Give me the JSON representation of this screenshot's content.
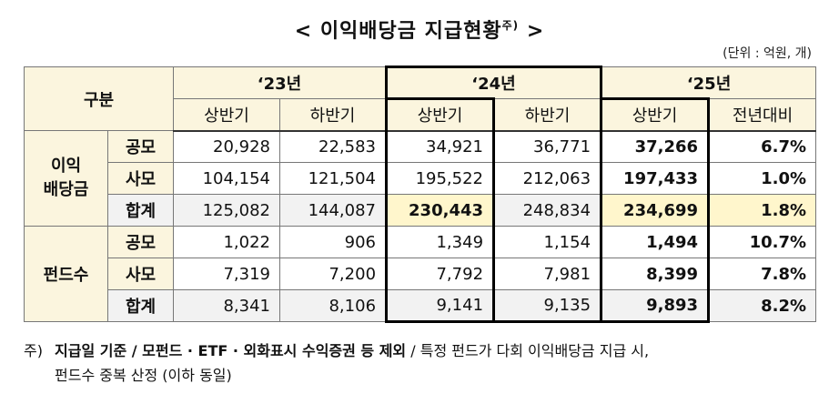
{
  "title": {
    "left_bracket": "<",
    "text": "이익배당금 지급현황",
    "sup": "주)",
    "right_bracket": ">"
  },
  "unit": "(단위 : 억원, 개)",
  "header": {
    "category": "구분",
    "years": [
      "‘23년",
      "‘24년",
      "‘25년"
    ],
    "sub": [
      "상반기",
      "하반기",
      "상반기",
      "하반기",
      "상반기",
      "전년대비"
    ]
  },
  "groups": [
    {
      "name": "이익\n배당금",
      "rows": [
        {
          "label": "공모",
          "values": [
            "20,928",
            "22,583",
            "34,921",
            "36,771",
            "37,266",
            "6.7%"
          ]
        },
        {
          "label": "사모",
          "values": [
            "104,154",
            "121,504",
            "195,522",
            "212,063",
            "197,433",
            "1.0%"
          ]
        },
        {
          "label": "합계",
          "values": [
            "125,082",
            "144,087",
            "230,443",
            "248,834",
            "234,699",
            "1.8%"
          ]
        }
      ]
    },
    {
      "name": "펀드수",
      "rows": [
        {
          "label": "공모",
          "values": [
            "1,022",
            "906",
            "1,349",
            "1,154",
            "1,494",
            "10.7%"
          ]
        },
        {
          "label": "사모",
          "values": [
            "7,319",
            "7,200",
            "7,792",
            "7,981",
            "8,399",
            "7.8%"
          ]
        },
        {
          "label": "합계",
          "values": [
            "8,341",
            "8,106",
            "9,141",
            "9,135",
            "9,893",
            "8.2%"
          ]
        }
      ]
    }
  ],
  "footnote": {
    "mark": "주)",
    "bold_part": "지급일 기준 / 모펀드 · ETF · 외화표시 수익증권 등 제외",
    "rest_line1": " / 특정 펀드가 다회 이익배당금 지급 시,",
    "line2": "펀드수 중복 산정 (이하 동일)"
  },
  "colors": {
    "header_bg": "#fbf5de",
    "total_row_bg": "#f2f2f2",
    "highlight_bg": "#fff6cc"
  }
}
